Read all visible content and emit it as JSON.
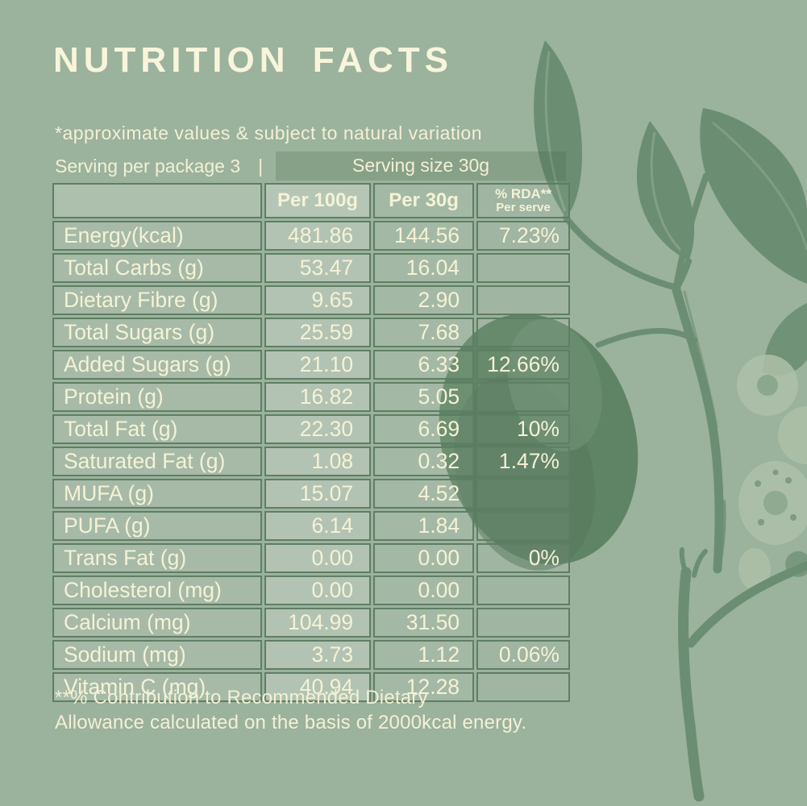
{
  "title": "NUTRITION FACTS",
  "disclaimer": "*approximate values & subject to natural variation",
  "serving": {
    "per_package": "Serving per package 3",
    "separator": "|",
    "size": "Serving size 30g"
  },
  "table": {
    "header": {
      "blank": "",
      "per_100g": "Per 100g",
      "per_30g": "Per 30g",
      "rda_line1": "% RDA**",
      "rda_line2": "Per serve"
    },
    "rows": [
      {
        "label": "Energy(kcal)",
        "per_100g": "481.86",
        "per_30g": "144.56",
        "rda": "7.23%"
      },
      {
        "label": "Total Carbs (g)",
        "per_100g": "53.47",
        "per_30g": "16.04",
        "rda": ""
      },
      {
        "label": "Dietary Fibre (g)",
        "per_100g": "9.65",
        "per_30g": "2.90",
        "rda": ""
      },
      {
        "label": "Total Sugars (g)",
        "per_100g": "25.59",
        "per_30g": "7.68",
        "rda": ""
      },
      {
        "label": "Added Sugars (g)",
        "per_100g": "21.10",
        "per_30g": "6.33",
        "rda": "12.66%"
      },
      {
        "label": "Protein (g)",
        "per_100g": "16.82",
        "per_30g": "5.05",
        "rda": ""
      },
      {
        "label": "Total Fat (g)",
        "per_100g": "22.30",
        "per_30g": "6.69",
        "rda": "10%"
      },
      {
        "label": "Saturated Fat (g)",
        "per_100g": "1.08",
        "per_30g": "0.32",
        "rda": "1.47%"
      },
      {
        "label": "MUFA (g)",
        "per_100g": "15.07",
        "per_30g": "4.52",
        "rda": ""
      },
      {
        "label": "PUFA (g)",
        "per_100g": "6.14",
        "per_30g": "1.84",
        "rda": ""
      },
      {
        "label": "Trans Fat (g)",
        "per_100g": "0.00",
        "per_30g": "0.00",
        "rda": "0%"
      },
      {
        "label": "Cholesterol (mg)",
        "per_100g": "0.00",
        "per_30g": "0.00",
        "rda": ""
      },
      {
        "label": "Calcium (mg)",
        "per_100g": "104.99",
        "per_30g": "31.50",
        "rda": ""
      },
      {
        "label": "Sodium (mg)",
        "per_100g": "3.73",
        "per_30g": "1.12",
        "rda": "0.06%"
      },
      {
        "label": "Vitamin C (mg)",
        "per_100g": "40.94",
        "per_30g": "12.28",
        "rda": ""
      }
    ]
  },
  "footnote_line1": "**% Contribution to Recommended Dietary",
  "footnote_line2": "Allowance calculated on the basis of 2000kcal energy.",
  "illustration": "almond-branch-botanical-sketch",
  "colors": {
    "background": "#9bb29d",
    "title_text": "#f8f5dc",
    "body_text": "#f3f0d5",
    "table_border": "#5f7e64",
    "serving_highlight": "#8ba88d",
    "illustration_green": "#6b8e72",
    "fruit_green": "#5f8465"
  }
}
